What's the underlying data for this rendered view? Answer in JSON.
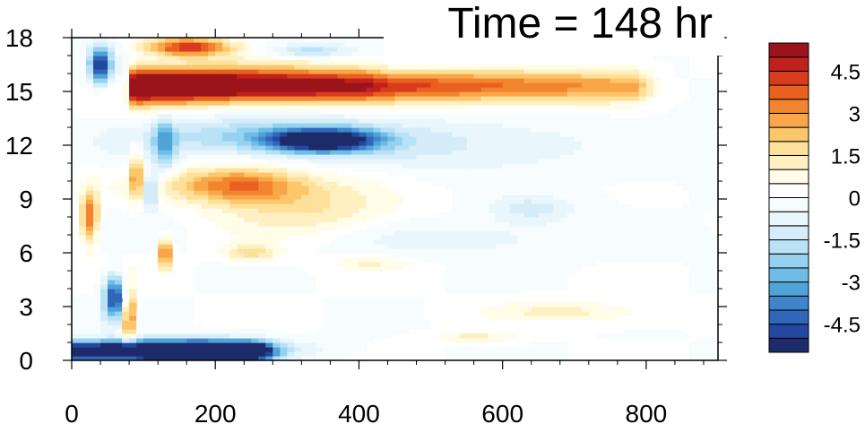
{
  "chart_data": {
    "type": "heatmap",
    "title": "Time = 148 hr",
    "xlabel": "",
    "ylabel": "",
    "xlim": [
      0,
      900
    ],
    "ylim": [
      0,
      18
    ],
    "x_ticks": [
      0,
      200,
      400,
      600,
      800
    ],
    "y_ticks": [
      0,
      3,
      6,
      9,
      12,
      15,
      18
    ],
    "colorbar": {
      "levels": [
        -5.5,
        -5,
        -4.5,
        -4,
        -3.5,
        -3,
        -2.5,
        -2,
        -1.5,
        -1,
        -0.5,
        0,
        0.5,
        1,
        1.5,
        2,
        2.5,
        3,
        3.5,
        4,
        4.5,
        5,
        5.5
      ],
      "colors": [
        "#1d2b6b",
        "#2348a0",
        "#2f66b8",
        "#3e86c9",
        "#4fa3d8",
        "#6fbde6",
        "#94d2f0",
        "#b9e2f6",
        "#d4edf9",
        "#e9f6fc",
        "#f7fcfe",
        "#ffffff",
        "#fffce8",
        "#fff0c2",
        "#fde099",
        "#fcc66a",
        "#f9a648",
        "#f2842f",
        "#e9601f",
        "#d93b1f",
        "#c0211d",
        "#9b1419"
      ],
      "tick_values": [
        -4.5,
        -3,
        -1.5,
        0,
        1.5,
        3,
        4.5
      ],
      "tick_labels": [
        "-4.5",
        "-3",
        "-1.5",
        "0",
        "1.5",
        "3",
        "4.5"
      ],
      "position": "right"
    },
    "features": [
      {
        "kind": "band",
        "x": [
          85,
          780
        ],
        "y": 15.3,
        "half_width": 0.9,
        "value": 6.0
      },
      {
        "kind": "band",
        "x": [
          90,
          400
        ],
        "y": 15.6,
        "half_width": 1.1,
        "value": 2.0
      },
      {
        "kind": "blob",
        "x": 350,
        "y": 12.3,
        "sx": 70,
        "sy": 0.6,
        "value": -6.0
      },
      {
        "kind": "blob",
        "x": 270,
        "y": 12.5,
        "sx": 160,
        "sy": 1.1,
        "value": -2.2
      },
      {
        "kind": "blob",
        "x": 520,
        "y": 12.0,
        "sx": 220,
        "sy": 1.5,
        "value": -1.0
      },
      {
        "kind": "blob",
        "x": 160,
        "y": 17.5,
        "sx": 60,
        "sy": 0.5,
        "value": 4.5
      },
      {
        "kind": "blob",
        "x": 330,
        "y": 17.3,
        "sx": 60,
        "sy": 0.4,
        "value": -1.8
      },
      {
        "kind": "blob",
        "x": 230,
        "y": 9.8,
        "sx": 90,
        "sy": 1.0,
        "value": 3.5
      },
      {
        "kind": "blob",
        "x": 330,
        "y": 8.5,
        "sx": 120,
        "sy": 1.8,
        "value": 1.5
      },
      {
        "kind": "blob",
        "x": 250,
        "y": 6.0,
        "sx": 40,
        "sy": 0.5,
        "value": 1.8
      },
      {
        "kind": "blob",
        "x": 420,
        "y": 5.4,
        "sx": 60,
        "sy": 0.4,
        "value": 1.0
      },
      {
        "kind": "blob",
        "x": 500,
        "y": 6.8,
        "sx": 200,
        "sy": 1.0,
        "value": -0.8
      },
      {
        "kind": "blob",
        "x": 640,
        "y": 8.5,
        "sx": 60,
        "sy": 0.8,
        "value": -1.2
      },
      {
        "kind": "band",
        "x": 250,
        "y": 0.5,
        "half_width": 0.6,
        "value": -6.0,
        "x_end": 250
      },
      {
        "kind": "blob",
        "x": 170,
        "y": 0.6,
        "sx": 120,
        "sy": 0.5,
        "value": -4.5
      },
      {
        "kind": "blob",
        "x": 680,
        "y": 2.7,
        "sx": 110,
        "sy": 0.6,
        "value": 1.2
      },
      {
        "kind": "blob",
        "x": 560,
        "y": 1.3,
        "sx": 60,
        "sy": 0.3,
        "value": 1.2
      },
      {
        "kind": "blob",
        "x": 40,
        "y": 16.5,
        "sx": 15,
        "sy": 1.0,
        "value": -5.0
      },
      {
        "kind": "blob",
        "x": 60,
        "y": 3.6,
        "sx": 15,
        "sy": 1.2,
        "value": -5.0
      },
      {
        "kind": "blob",
        "x": 25,
        "y": 8.0,
        "sx": 12,
        "sy": 1.5,
        "value": 3.5
      },
      {
        "kind": "blob",
        "x": 90,
        "y": 10.5,
        "sx": 8,
        "sy": 1.5,
        "value": 3.0
      },
      {
        "kind": "blob",
        "x": 110,
        "y": 9.5,
        "sx": 10,
        "sy": 1.0,
        "value": -3.0
      },
      {
        "kind": "blob",
        "x": 130,
        "y": 6.0,
        "sx": 8,
        "sy": 0.8,
        "value": 4.0
      },
      {
        "kind": "blob",
        "x": 80,
        "y": 2.5,
        "sx": 10,
        "sy": 1.5,
        "value": 4.0
      },
      {
        "kind": "blob",
        "x": 130,
        "y": 12.0,
        "sx": 15,
        "sy": 1.5,
        "value": -2.5
      }
    ]
  }
}
